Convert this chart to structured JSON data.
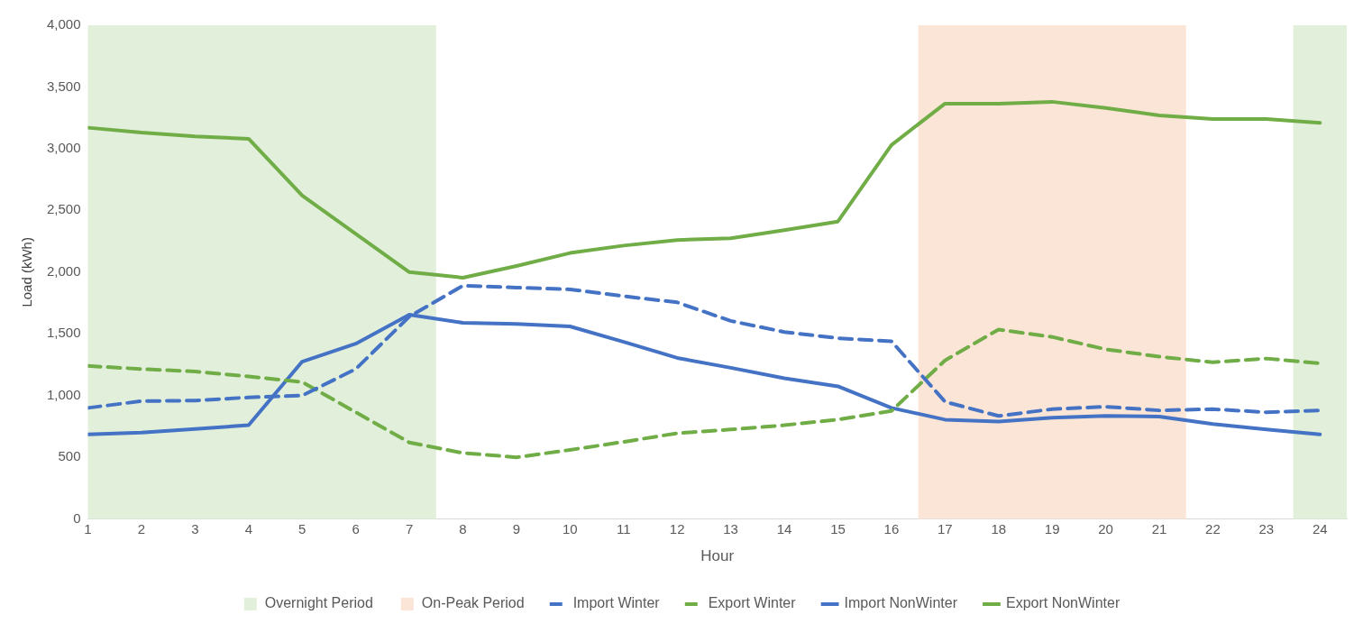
{
  "chart_data": {
    "type": "line",
    "xlabel": "Hour",
    "ylabel": "Load (kWh)",
    "x": [
      1,
      2,
      3,
      4,
      5,
      6,
      7,
      8,
      9,
      10,
      11,
      12,
      13,
      14,
      15,
      16,
      17,
      18,
      19,
      20,
      21,
      22,
      23,
      24
    ],
    "xlim": [
      1,
      24.5
    ],
    "xticks": [
      1,
      2,
      3,
      4,
      5,
      6,
      7,
      8,
      9,
      10,
      11,
      12,
      13,
      14,
      15,
      16,
      17,
      18,
      19,
      20,
      21,
      22,
      23,
      24
    ],
    "ylim": [
      0,
      4000
    ],
    "yticks": [
      {
        "value": 0,
        "label": "0"
      },
      {
        "value": 500,
        "label": "500"
      },
      {
        "value": 1000,
        "label": "1,000"
      },
      {
        "value": 1500,
        "label": "1,500"
      },
      {
        "value": 2000,
        "label": "2,000"
      },
      {
        "value": 2500,
        "label": "2,500"
      },
      {
        "value": 3000,
        "label": "3,000"
      },
      {
        "value": 3500,
        "label": "3,500"
      },
      {
        "value": 4000,
        "label": "4,000"
      }
    ],
    "grid": false,
    "legend": "bottom",
    "marker": "none",
    "bands": [
      {
        "axis": "x",
        "from": 1,
        "to": 7.5,
        "label": "Overnight Period",
        "color": "#e2efda"
      },
      {
        "axis": "x",
        "from": 16.5,
        "to": 21.5,
        "label": "On-Peak Period",
        "color": "#fbe5d6"
      },
      {
        "axis": "x",
        "from": 23.5,
        "to": 24.5,
        "color": "#e2efda"
      }
    ],
    "series": [
      {
        "name": "Import Winter",
        "color": "#4472c4",
        "line_style": "dashed",
        "values": [
          900,
          955,
          960,
          985,
          1000,
          1215,
          1640,
          1890,
          1875,
          1860,
          1805,
          1755,
          1605,
          1515,
          1465,
          1440,
          950,
          835,
          890,
          910,
          880,
          890,
          865,
          880
        ]
      },
      {
        "name": "Export Winter",
        "color": "#70ad47",
        "line_style": "dashed",
        "values": [
          1240,
          1215,
          1195,
          1155,
          1110,
          865,
          620,
          535,
          500,
          560,
          625,
          695,
          725,
          760,
          805,
          875,
          1285,
          1535,
          1475,
          1375,
          1315,
          1270,
          1300,
          1260
        ]
      },
      {
        "name": "Import NonWinter",
        "color": "#4472c4",
        "line_style": "solid",
        "values": [
          685,
          700,
          730,
          760,
          1275,
          1420,
          1655,
          1590,
          1580,
          1560,
          1435,
          1305,
          1225,
          1140,
          1075,
          900,
          805,
          790,
          820,
          835,
          830,
          770,
          725,
          685
        ]
      },
      {
        "name": "Export NonWinter",
        "color": "#70ad47",
        "line_style": "solid",
        "values": [
          3170,
          3130,
          3100,
          3080,
          2620,
          2310,
          2000,
          1955,
          2050,
          2155,
          2215,
          2260,
          2275,
          2340,
          2410,
          3030,
          3365,
          3365,
          3380,
          3330,
          3270,
          3240,
          3240,
          3210
        ]
      }
    ]
  }
}
